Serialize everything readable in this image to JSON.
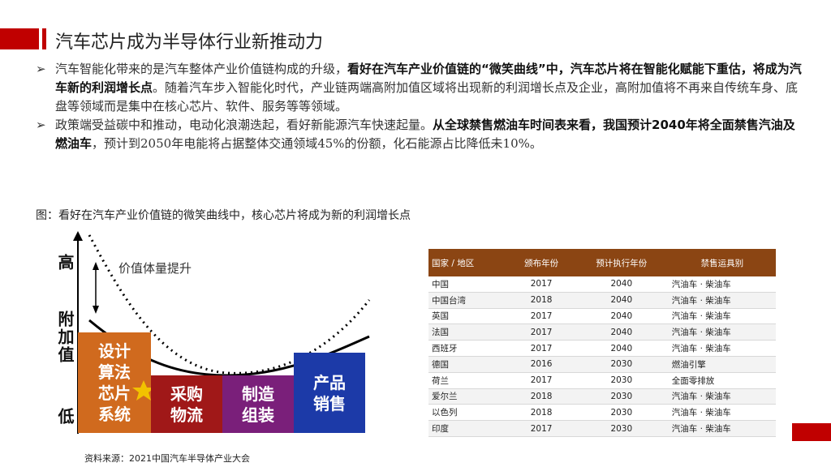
{
  "header": {
    "title": "汽车芯片成为半导体行业新推动力"
  },
  "bullets": [
    {
      "arrow": "➢",
      "pre": "汽车智能化带来的是汽车整体产业价值链构成的升级，",
      "bold": "看好在汽车产业价值链的“微笑曲线”中，汽车芯片将在智能化赋能下重估，将成为汽车新的利润增长点",
      "post": "。随着汽车步入智能化时代，产业链两端高附加值区域将出现新的利润增长点及企业，高附加值将不再来自传统车身、底盘等领域而是集中在核心芯片、软件、服务等等领域。"
    },
    {
      "arrow": "➢",
      "pre": "政策端受益碳中和推动，电动化浪潮迭起，看好新能源汽车快速起量。",
      "bold": "从全球禁售燃油车时间表来看，我国预计2040年将全面禁售汽油及燃油车",
      "post": "，预计到2050年电能将占据整体交通领域45%的份额，化石能源占比降低未10%。"
    }
  ],
  "caption": "图：看好在汽车产业价值链的微笑曲线中，核心芯片将成为新的利润增长点",
  "diagram": {
    "y_high": "高",
    "y_axis": "附加值",
    "y_low": "低",
    "annotation": "价值体量提升",
    "blocks": [
      {
        "label": "设计\n算法\n芯片\n系统",
        "color": "#d06a1e"
      },
      {
        "label": "采购\n物流",
        "color": "#a01818"
      },
      {
        "label": "制造\n组装",
        "color": "#7a1f7a"
      },
      {
        "label": "产品\n销售",
        "color": "#1c3aa8"
      }
    ]
  },
  "table": {
    "headers": [
      "国家 / 地区",
      "颁布年份",
      "预计执行年份",
      "禁售运具别"
    ],
    "rows": [
      [
        "中国",
        "2017",
        "2040",
        "汽油车 · 柴油车"
      ],
      [
        "中国台湾",
        "2018",
        "2040",
        "汽油车 · 柴油车"
      ],
      [
        "英国",
        "2017",
        "2040",
        "汽油车 · 柴油车"
      ],
      [
        "法国",
        "2017",
        "2040",
        "汽油车 · 柴油车"
      ],
      [
        "西班牙",
        "2017",
        "2040",
        "汽油车 · 柴油车"
      ],
      [
        "德国",
        "2016",
        "2030",
        "燃油引擎"
      ],
      [
        "荷兰",
        "2017",
        "2030",
        "全面零排放"
      ],
      [
        "爱尔兰",
        "2018",
        "2030",
        "汽油车 · 柴油车"
      ],
      [
        "以色列",
        "2018",
        "2030",
        "汽油车 · 柴油车"
      ],
      [
        "印度",
        "2017",
        "2030",
        "汽油车 · 柴油车"
      ]
    ]
  },
  "source": "资料来源：2021中国汽车半导体产业大会"
}
